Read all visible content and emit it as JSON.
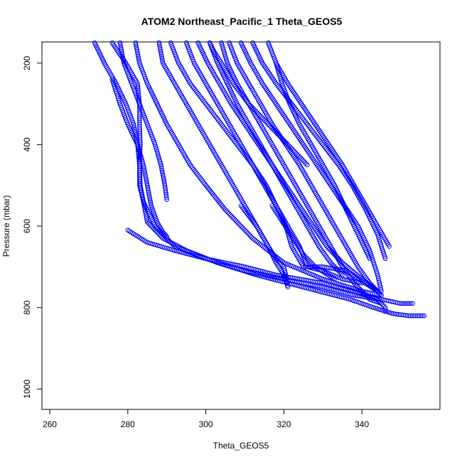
{
  "chart_data": {
    "type": "scatter",
    "title": "ATOM2 Northeast_Pacific_1 Theta_GEOS5",
    "xlabel": "Theta_GEOS5",
    "ylabel": "Pressure (mbar)",
    "xlim": [
      258,
      360
    ],
    "ylim": [
      1050,
      148
    ],
    "y_reversed": true,
    "grid": false,
    "marker": "open-circle",
    "color": "#0000ff",
    "xticks": [
      260,
      280,
      300,
      320,
      340
    ],
    "yticks": [
      200,
      400,
      600,
      800,
      1000
    ],
    "series": [
      {
        "x": [
          271.5,
          274,
          277,
          279.5,
          281.5,
          282.5,
          283,
          283.2,
          285,
          289,
          295,
          303,
          313,
          325,
          337,
          343,
          348,
          352,
          356
        ],
        "y": [
          150,
          200,
          250,
          300,
          350,
          400,
          450,
          500,
          590,
          630,
          660,
          690,
          720,
          750,
          780,
          800,
          815,
          820,
          820
        ]
      },
      {
        "x": [
          276,
          279.5,
          282.5,
          283,
          283,
          283.2,
          283,
          283,
          284,
          287,
          292,
          300,
          310,
          320,
          330,
          338,
          345,
          350,
          353
        ],
        "y": [
          150,
          200,
          250,
          300,
          350,
          400,
          450,
          500,
          540,
          600,
          650,
          680,
          710,
          730,
          750,
          770,
          780,
          790,
          790
        ]
      },
      {
        "x": [
          278,
          279,
          281,
          283,
          285,
          287,
          288.5,
          289.5,
          290
        ],
        "y": [
          150,
          200,
          250,
          300,
          350,
          400,
          450,
          500,
          535
        ]
      },
      {
        "x": [
          276,
          277,
          278,
          280,
          282.5,
          284,
          285,
          286,
          287.5,
          289,
          290
        ],
        "y": [
          240,
          270,
          300,
          350,
          400,
          450,
          500,
          550,
          590,
          615,
          625
        ]
      },
      {
        "x": [
          282,
          283,
          285,
          287.5,
          290,
          293,
          296,
          300,
          305,
          312,
          320,
          330,
          340,
          345
        ],
        "y": [
          150,
          200,
          250,
          300,
          350,
          400,
          450,
          500,
          560,
          630,
          690,
          730,
          760,
          770
        ]
      },
      {
        "x": [
          288,
          289,
          292,
          295,
          298,
          301,
          304,
          307,
          310,
          313,
          316,
          318,
          320,
          321
        ],
        "y": [
          150,
          200,
          250,
          300,
          350,
          400,
          450,
          500,
          550,
          600,
          650,
          690,
          720,
          750
        ]
      },
      {
        "x": [
          291,
          293,
          296,
          300,
          304,
          308,
          312,
          315.5,
          318,
          320.5,
          322,
          325,
          330,
          336,
          344
        ],
        "y": [
          150,
          200,
          250,
          300,
          350,
          400,
          450,
          500,
          550,
          600,
          650,
          700,
          700,
          710,
          760
        ]
      },
      {
        "x": [
          295,
          297,
          300,
          303,
          306,
          309,
          312,
          315,
          318,
          321,
          324,
          326,
          330,
          335,
          340
        ],
        "y": [
          150,
          200,
          250,
          300,
          350,
          400,
          450,
          500,
          550,
          600,
          650,
          700,
          710,
          730,
          740
        ]
      },
      {
        "x": [
          298,
          300.5,
          303.5,
          306.5,
          310,
          313.5,
          317,
          320.5,
          324,
          327.5,
          331,
          335,
          340,
          344
        ],
        "y": [
          150,
          200,
          250,
          300,
          350,
          400,
          450,
          500,
          550,
          600,
          650,
          690,
          730,
          760
        ]
      },
      {
        "x": [
          301,
          303,
          305.5,
          308,
          311,
          314,
          317,
          320,
          323,
          326,
          329,
          332,
          335
        ],
        "y": [
          150,
          200,
          250,
          300,
          350,
          400,
          450,
          500,
          550,
          600,
          650,
          690,
          720
        ]
      },
      {
        "x": [
          304,
          305.5,
          308,
          311,
          314,
          317,
          320,
          323,
          326,
          329,
          332,
          335,
          338,
          342,
          345
        ],
        "y": [
          150,
          200,
          250,
          300,
          350,
          400,
          450,
          500,
          550,
          600,
          650,
          700,
          740,
          780,
          790
        ]
      },
      {
        "x": [
          306,
          308,
          311,
          314,
          317,
          320.5,
          324,
          327,
          330,
          333,
          336,
          339,
          342,
          345
        ],
        "y": [
          150,
          200,
          250,
          300,
          350,
          400,
          450,
          500,
          550,
          600,
          650,
          700,
          740,
          770
        ]
      },
      {
        "x": [
          309,
          311.5,
          314.5,
          318,
          321.5,
          325,
          328.5,
          332,
          335.5,
          339,
          342,
          344,
          345
        ],
        "y": [
          150,
          200,
          250,
          300,
          350,
          400,
          450,
          500,
          550,
          600,
          660,
          720,
          760
        ]
      },
      {
        "x": [
          312,
          314.5,
          318,
          322,
          326,
          330,
          334,
          337.5,
          341,
          344,
          346
        ],
        "y": [
          150,
          200,
          250,
          300,
          350,
          400,
          450,
          500,
          560,
          620,
          680
        ]
      },
      {
        "x": [
          316,
          318,
          321,
          324.5,
          328,
          331.5,
          335,
          338,
          341,
          344,
          347
        ],
        "y": [
          150,
          200,
          250,
          300,
          350,
          400,
          450,
          500,
          550,
          600,
          650
        ]
      },
      {
        "x": [
          318,
          319.5,
          321.5,
          324,
          327,
          330,
          333,
          336,
          339,
          342
        ],
        "y": [
          200,
          250,
          300,
          350,
          400,
          450,
          500,
          560,
          620,
          680
        ]
      },
      {
        "x": [
          301,
          302,
          304,
          307,
          311,
          316,
          321,
          326
        ],
        "y": [
          150,
          170,
          200,
          250,
          300,
          350,
          400,
          450
        ]
      },
      {
        "x": [
          317,
          319,
          321,
          323,
          325,
          328,
          333
        ],
        "y": [
          550,
          580,
          610,
          640,
          670,
          700,
          730
        ]
      },
      {
        "x": [
          280,
          285,
          292,
          300,
          310,
          318,
          324,
          330,
          338,
          344,
          346,
          346
        ],
        "y": [
          610,
          640,
          660,
          680,
          700,
          720,
          730,
          740,
          760,
          780,
          800,
          810
        ]
      },
      {
        "x": [
          309,
          313,
          316,
          318,
          320,
          321
        ],
        "y": [
          550,
          600,
          650,
          680,
          700,
          740
        ]
      }
    ]
  }
}
